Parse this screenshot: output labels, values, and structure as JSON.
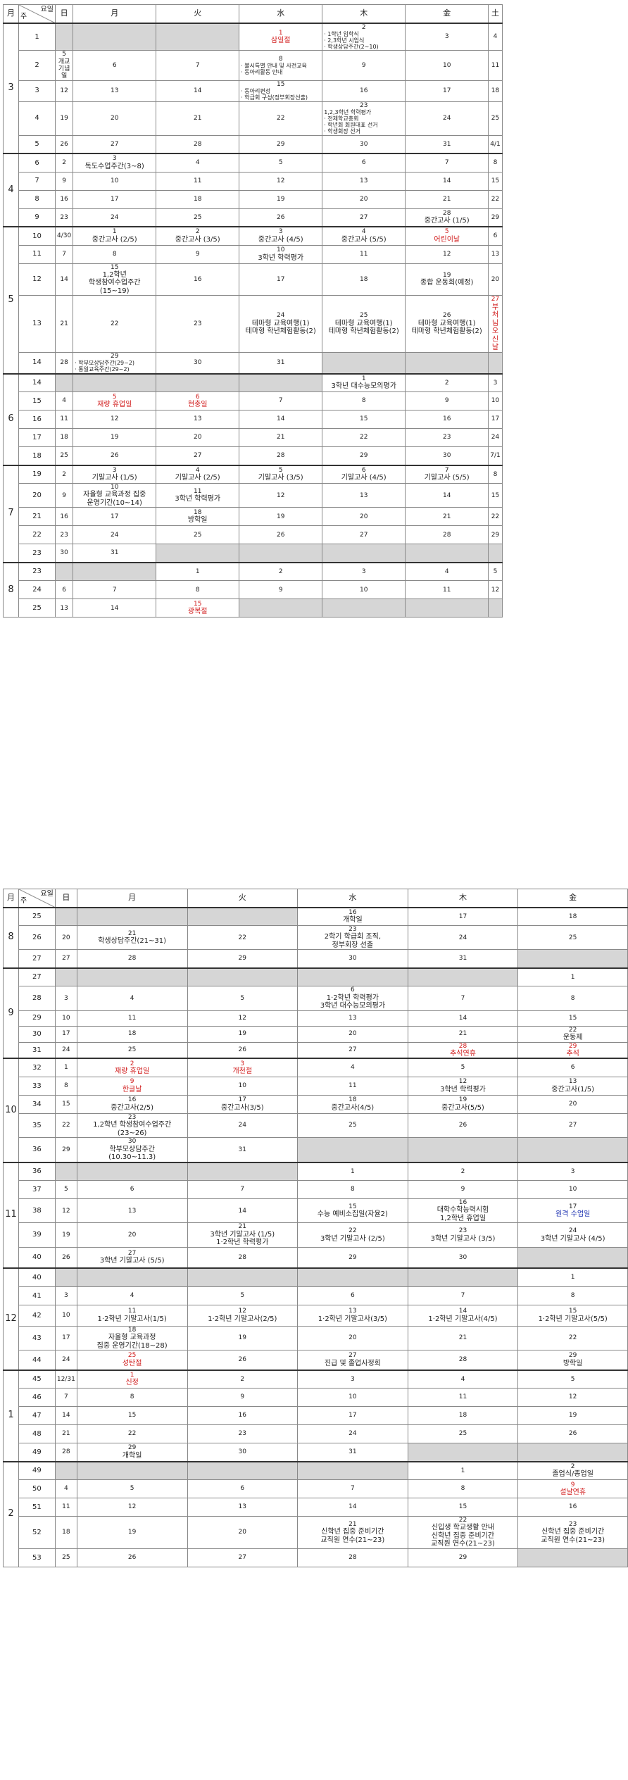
{
  "headers": {
    "month": "月",
    "weekday": "요일",
    "week": "주",
    "sun": "日",
    "mon": "月",
    "tue": "火",
    "wed": "水",
    "thu": "木",
    "fri": "金",
    "sat": "土"
  },
  "sheet1": [
    {
      "month": "3",
      "week": "1",
      "sun": "",
      "d": [
        "",
        "",
        "1|삼일절|red",
        "2|· 1학년 입학식\n· 2,3학년 시업식\n· 학생상담주간(2~10)|sm",
        "3",
        "4"
      ]
    },
    {
      "month": "",
      "week": "2",
      "sun": "5\n개교\n기념\n일",
      "d": [
        "6",
        "7",
        "8|· 불시특별 안내 및 사전교육\n· 동아리활동 안내|sm",
        "9",
        "10",
        "11"
      ]
    },
    {
      "month": "",
      "week": "3",
      "sun": "12",
      "d": [
        "13",
        "14",
        "15|· 동아리편성\n· 학급회 구성(정부회장선출)|sm",
        "16",
        "17",
        "18"
      ]
    },
    {
      "month": "",
      "week": "4",
      "sun": "19",
      "d": [
        "20",
        "21",
        "22",
        "23|1,2,3학년 학력평가\n· 전체학교총회\n· 학년회 회원대표 선거\n· 학생회장 선거|sm",
        "24",
        "25"
      ]
    },
    {
      "month": "",
      "week": "5",
      "sun": "26",
      "d": [
        "27",
        "28",
        "29",
        "30",
        "31",
        "4/1"
      ]
    },
    {
      "month": "4",
      "week": "6",
      "sun": "2",
      "d": [
        "3|독도수업주간(3~8)",
        "4",
        "5",
        "6",
        "7",
        "8"
      ]
    },
    {
      "month": "",
      "week": "7",
      "sun": "9",
      "d": [
        "10",
        "11",
        "12",
        "13",
        "14",
        "15"
      ]
    },
    {
      "month": "",
      "week": "8",
      "sun": "16",
      "d": [
        "17",
        "18",
        "19",
        "20",
        "21",
        "22"
      ]
    },
    {
      "month": "",
      "week": "9",
      "sun": "23",
      "d": [
        "24",
        "25",
        "26",
        "27",
        "28|중간고사 (1/5)",
        "29"
      ]
    },
    {
      "month": "5",
      "week": "10",
      "sun": "4/30",
      "d": [
        "1|중간고사 (2/5)",
        "2|중간고사 (3/5)",
        "3|중간고사 (4/5)",
        "4|중간고사 (5/5)",
        "5|어린이날|red",
        "6"
      ]
    },
    {
      "month": "",
      "week": "11",
      "sun": "7",
      "d": [
        "8",
        "9",
        "10|3학년 학력평가",
        "11",
        "12",
        "13"
      ]
    },
    {
      "month": "",
      "week": "12",
      "sun": "14",
      "d": [
        "15|1,2학년\n학생참여수업주간(15~19)",
        "16",
        "17",
        "18",
        "19|종합 운동회(예정)",
        "20"
      ]
    },
    {
      "month": "",
      "week": "13",
      "sun": "21",
      "d": [
        "22",
        "23",
        "24|테마형 교육여행(1)\n테마형 학년체험활동(2)",
        "25|테마형 교육여행(1)\n테마형 학년체험활동(2)",
        "26|테마형 교육여행(1)\n테마형 학년체험활동(2)",
        "27|부처님\n오신날|red"
      ]
    },
    {
      "month": "",
      "week": "14",
      "sun": "28",
      "d": [
        "29|· 학부모상담주간(29~2)\n· 통일교육주간(29~2)|sm",
        "30",
        "31",
        "",
        "",
        ""
      ]
    },
    {
      "month": "6",
      "week": "14",
      "sun": "",
      "d": [
        "",
        "",
        "",
        "1|3학년 대수능모의평가",
        "2",
        "3"
      ]
    },
    {
      "month": "",
      "week": "15",
      "sun": "4",
      "d": [
        "5|재량 휴업일|red",
        "6|현충일|red",
        "7",
        "8",
        "9",
        "10"
      ]
    },
    {
      "month": "",
      "week": "16",
      "sun": "11",
      "d": [
        "12",
        "13",
        "14",
        "15",
        "16",
        "17"
      ]
    },
    {
      "month": "",
      "week": "17",
      "sun": "18",
      "d": [
        "19",
        "20",
        "21",
        "22",
        "23",
        "24"
      ]
    },
    {
      "month": "",
      "week": "18",
      "sun": "25",
      "d": [
        "26",
        "27",
        "28",
        "29",
        "30",
        "7/1"
      ]
    },
    {
      "month": "7",
      "week": "19",
      "sun": "2",
      "d": [
        "3|기말고사 (1/5)",
        "4|기말고사 (2/5)",
        "5|기말고사 (3/5)",
        "6|기말고사 (4/5)",
        "7|기말고사 (5/5)",
        "8"
      ]
    },
    {
      "month": "",
      "week": "20",
      "sun": "9",
      "d": [
        "10|자율형 교육과정 집중\n운영기간(10~14)",
        "11|3학년 학력평가",
        "12",
        "13",
        "14",
        "15"
      ]
    },
    {
      "month": "",
      "week": "21",
      "sun": "16",
      "d": [
        "17",
        "18|방학일",
        "19",
        "20",
        "21",
        "22"
      ]
    },
    {
      "month": "",
      "week": "22",
      "sun": "23",
      "d": [
        "24",
        "25",
        "26",
        "27",
        "28",
        "29"
      ]
    },
    {
      "month": "",
      "week": "23",
      "sun": "30",
      "d": [
        "31",
        "",
        "",
        "",
        "",
        ""
      ]
    },
    {
      "month": "8",
      "week": "23",
      "sun": "",
      "d": [
        "",
        "1",
        "2",
        "3",
        "4",
        "5"
      ]
    },
    {
      "month": "",
      "week": "24",
      "sun": "6",
      "d": [
        "7",
        "8",
        "9",
        "10",
        "11",
        "12"
      ]
    },
    {
      "month": "",
      "week": "25",
      "sun": "13",
      "d": [
        "14",
        "15|광복절|red",
        "",
        "",
        "",
        ""
      ]
    }
  ],
  "sheet2": [
    {
      "month": "8",
      "week": "25",
      "sun": "",
      "d": [
        "",
        "",
        "16|개학일",
        "17",
        "18"
      ]
    },
    {
      "month": "",
      "week": "26",
      "sun": "20",
      "d": [
        "21|학생상담주간(21~31)",
        "22",
        "23|2학기 학급회 조직,\n정부회장 선출",
        "24",
        "25"
      ]
    },
    {
      "month": "",
      "week": "27",
      "sun": "27",
      "d": [
        "28",
        "29",
        "30",
        "31",
        ""
      ]
    },
    {
      "month": "9",
      "week": "27",
      "sun": "",
      "d": [
        "",
        "",
        "",
        "",
        "1"
      ]
    },
    {
      "month": "",
      "week": "28",
      "sun": "3",
      "d": [
        "4",
        "5",
        "6|1·2학년 학력평가\n3학년 대수능모의평가",
        "7",
        "8"
      ]
    },
    {
      "month": "",
      "week": "29",
      "sun": "10",
      "d": [
        "11",
        "12",
        "13",
        "14",
        "15"
      ]
    },
    {
      "month": "",
      "week": "30",
      "sun": "17",
      "d": [
        "18",
        "19",
        "20",
        "21",
        "22|운동제"
      ]
    },
    {
      "month": "",
      "week": "31",
      "sun": "24",
      "d": [
        "25",
        "26",
        "27",
        "28|추석연휴|red",
        "29|추석|red"
      ]
    },
    {
      "month": "10",
      "week": "32",
      "sun": "1",
      "d": [
        "2|재량 휴업일|red",
        "3|개천절|red",
        "4",
        "5",
        "6"
      ]
    },
    {
      "month": "",
      "week": "33",
      "sun": "8",
      "d": [
        "9|한글날|red",
        "10",
        "11",
        "12|3학년 학력평가",
        "13|중간고사(1/5)"
      ]
    },
    {
      "month": "",
      "week": "34",
      "sun": "15",
      "d": [
        "16|중간고사(2/5)",
        "17|중간고사(3/5)",
        "18|중간고사(4/5)",
        "19|중간고사(5/5)",
        "20"
      ]
    },
    {
      "month": "",
      "week": "35",
      "sun": "22",
      "d": [
        "23|1,2학년 학생참여수업주간\n(23~26)",
        "24",
        "25",
        "26",
        "27"
      ]
    },
    {
      "month": "",
      "week": "36",
      "sun": "29",
      "d": [
        "30|학부모상담주간\n(10.30~11.3)",
        "31",
        "",
        "",
        ""
      ]
    },
    {
      "month": "11",
      "week": "36",
      "sun": "",
      "d": [
        "",
        "",
        "1",
        "2",
        "3"
      ]
    },
    {
      "month": "",
      "week": "37",
      "sun": "5",
      "d": [
        "6",
        "7",
        "8",
        "9",
        "10"
      ]
    },
    {
      "month": "",
      "week": "38",
      "sun": "12",
      "d": [
        "13",
        "14",
        "15|수능 예비소집일(자율2)",
        "16|대학수학능력시험\n1,2학년 휴업일",
        "17|원격 수업일"
      ]
    },
    {
      "month": "",
      "week": "39",
      "sun": "19",
      "d": [
        "20",
        "21|3학년 기말고사 (1/5)\n1·2학년 학력평가",
        "22|3학년 기말고사 (2/5)",
        "23|3학년 기말고사 (3/5)",
        "24|3학년 기말고사 (4/5)"
      ]
    },
    {
      "month": "",
      "week": "40",
      "sun": "26",
      "d": [
        "27|3학년 기말고사 (5/5)",
        "28",
        "29",
        "30",
        ""
      ]
    },
    {
      "month": "12",
      "week": "40",
      "sun": "",
      "d": [
        "",
        "",
        "",
        "",
        "1"
      ]
    },
    {
      "month": "",
      "week": "41",
      "sun": "3",
      "d": [
        "4",
        "5",
        "6",
        "7",
        "8"
      ]
    },
    {
      "month": "",
      "week": "42",
      "sun": "10",
      "d": [
        "11|1·2학년 기말고사(1/5)",
        "12|1·2학년 기말고사(2/5)",
        "13|1·2학년 기말고사(3/5)",
        "14|1·2학년 기말고사(4/5)",
        "15|1·2학년 기말고사(5/5)"
      ]
    },
    {
      "month": "",
      "week": "43",
      "sun": "17",
      "d": [
        "18|자율형 교육과정\n집중 운영기간(18~28)",
        "19",
        "20",
        "21",
        "22"
      ]
    },
    {
      "month": "",
      "week": "44",
      "sun": "24",
      "d": [
        "25|성탄절|red",
        "26",
        "27|진급 및 졸업사정회",
        "28",
        "29|방학일"
      ]
    },
    {
      "month": "1",
      "week": "45",
      "sun": "12/31",
      "d": [
        "1|신정|red",
        "2",
        "3",
        "4",
        "5"
      ]
    },
    {
      "month": "",
      "week": "46",
      "sun": "7",
      "d": [
        "8",
        "9",
        "10",
        "11",
        "12"
      ]
    },
    {
      "month": "",
      "week": "47",
      "sun": "14",
      "d": [
        "15",
        "16",
        "17",
        "18",
        "19"
      ]
    },
    {
      "month": "",
      "week": "48",
      "sun": "21",
      "d": [
        "22",
        "23",
        "24",
        "25",
        "26"
      ]
    },
    {
      "month": "",
      "week": "49",
      "sun": "28",
      "d": [
        "29|개학일",
        "30",
        "31",
        "",
        ""
      ]
    },
    {
      "month": "2",
      "week": "49",
      "sun": "",
      "d": [
        "",
        "",
        "",
        "1",
        "2|졸업식/종업일"
      ]
    },
    {
      "month": "",
      "week": "50",
      "sun": "4",
      "d": [
        "5",
        "6",
        "7",
        "8",
        "9|설날연휴|red"
      ]
    },
    {
      "month": "",
      "week": "51",
      "sun": "11",
      "d": [
        "12",
        "13",
        "14",
        "15",
        "16"
      ]
    },
    {
      "month": "",
      "week": "52",
      "sun": "18",
      "d": [
        "19",
        "20",
        "21|신학년 집중 준비기간\n교직원 연수(21~23)",
        "22|신입생 학교생활 안내\n신학년 집중 준비기간\n교직원 연수(21~23)",
        "23|신학년 집중 준비기간\n교직원 연수(21~23)"
      ]
    },
    {
      "month": "",
      "week": "53",
      "sun": "25",
      "d": [
        "26",
        "27",
        "28",
        "29",
        ""
      ]
    }
  ]
}
